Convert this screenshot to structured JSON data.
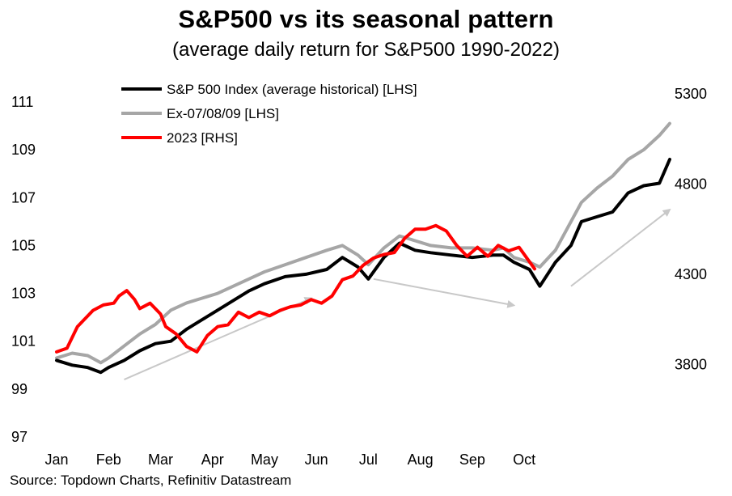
{
  "chart_data": {
    "type": "line",
    "title": "S&P500 vs its seasonal pattern",
    "subtitle": "(average daily return for S&P500 1990-2022)",
    "source": "Source: Topdown Charts, Refinitiv Datastream",
    "x_ticks": [
      "Jan",
      "Feb",
      "Mar",
      "Apr",
      "May",
      "Jun",
      "Jul",
      "Aug",
      "Sep",
      "Oct"
    ],
    "x_range": [
      0,
      11.8
    ],
    "y_left": {
      "ylim": [
        97,
        111
      ],
      "ticks": [
        "111",
        "109",
        "107",
        "105",
        "103",
        "101",
        "99",
        "97"
      ]
    },
    "y_right": {
      "ylim": [
        3300,
        5300
      ],
      "ticks": [
        "5300",
        "4800",
        "4300",
        "3800"
      ]
    },
    "legend": {
      "position": "top-left",
      "entries": [
        {
          "name": "S&P 500 Index (average historical) [LHS]",
          "color": "#000000"
        },
        {
          "name": "Ex-07/08/09 [LHS]",
          "color": "#a6a6a6"
        },
        {
          "name": "2023 [RHS]",
          "color": "#ff0000"
        }
      ]
    },
    "series": [
      {
        "name": "S&P 500 Index (average historical) [LHS]",
        "axis": "left",
        "color": "#000000",
        "points": [
          [
            0.0,
            100.2
          ],
          [
            0.3,
            100.0
          ],
          [
            0.6,
            99.9
          ],
          [
            0.85,
            99.7
          ],
          [
            1.0,
            99.9
          ],
          [
            1.3,
            100.2
          ],
          [
            1.6,
            100.6
          ],
          [
            1.9,
            100.9
          ],
          [
            2.2,
            101.0
          ],
          [
            2.5,
            101.5
          ],
          [
            2.8,
            101.9
          ],
          [
            3.1,
            102.3
          ],
          [
            3.4,
            102.7
          ],
          [
            3.7,
            103.1
          ],
          [
            4.0,
            103.4
          ],
          [
            4.4,
            103.7
          ],
          [
            4.8,
            103.8
          ],
          [
            5.2,
            104.0
          ],
          [
            5.5,
            104.5
          ],
          [
            5.8,
            104.1
          ],
          [
            6.0,
            103.6
          ],
          [
            6.3,
            104.5
          ],
          [
            6.6,
            105.1
          ],
          [
            6.9,
            104.8
          ],
          [
            7.2,
            104.7
          ],
          [
            7.6,
            104.6
          ],
          [
            8.0,
            104.5
          ],
          [
            8.4,
            104.6
          ],
          [
            8.6,
            104.6
          ],
          [
            8.8,
            104.3
          ],
          [
            9.1,
            104.0
          ],
          [
            9.3,
            103.3
          ],
          [
            9.6,
            104.3
          ],
          [
            9.9,
            105.0
          ],
          [
            10.1,
            106.0
          ],
          [
            10.4,
            106.2
          ],
          [
            10.7,
            106.4
          ],
          [
            11.0,
            107.2
          ],
          [
            11.3,
            107.5
          ],
          [
            11.6,
            107.6
          ],
          [
            11.8,
            108.6
          ]
        ]
      },
      {
        "name": "Ex-07/08/09 [LHS]",
        "axis": "left",
        "color": "#a6a6a6",
        "points": [
          [
            0.0,
            100.3
          ],
          [
            0.3,
            100.5
          ],
          [
            0.6,
            100.4
          ],
          [
            0.85,
            100.1
          ],
          [
            1.0,
            100.3
          ],
          [
            1.3,
            100.8
          ],
          [
            1.6,
            101.3
          ],
          [
            1.9,
            101.7
          ],
          [
            2.2,
            102.3
          ],
          [
            2.5,
            102.6
          ],
          [
            2.8,
            102.8
          ],
          [
            3.1,
            103.0
          ],
          [
            3.4,
            103.3
          ],
          [
            3.7,
            103.6
          ],
          [
            4.0,
            103.9
          ],
          [
            4.4,
            104.2
          ],
          [
            4.8,
            104.5
          ],
          [
            5.2,
            104.8
          ],
          [
            5.5,
            105.0
          ],
          [
            5.8,
            104.6
          ],
          [
            6.0,
            104.2
          ],
          [
            6.3,
            104.9
          ],
          [
            6.6,
            105.4
          ],
          [
            6.9,
            105.2
          ],
          [
            7.2,
            105.0
          ],
          [
            7.6,
            104.9
          ],
          [
            8.0,
            104.9
          ],
          [
            8.4,
            104.8
          ],
          [
            8.6,
            104.9
          ],
          [
            8.8,
            104.5
          ],
          [
            9.1,
            104.3
          ],
          [
            9.3,
            104.1
          ],
          [
            9.6,
            104.8
          ],
          [
            9.9,
            106.0
          ],
          [
            10.1,
            106.8
          ],
          [
            10.4,
            107.4
          ],
          [
            10.7,
            107.9
          ],
          [
            11.0,
            108.6
          ],
          [
            11.3,
            109.0
          ],
          [
            11.6,
            109.6
          ],
          [
            11.8,
            110.1
          ]
        ]
      },
      {
        "name": "2023 [RHS]",
        "axis": "right",
        "color": "#ff0000",
        "points": [
          [
            0.0,
            3870
          ],
          [
            0.2,
            3890
          ],
          [
            0.4,
            4010
          ],
          [
            0.7,
            4100
          ],
          [
            0.9,
            4130
          ],
          [
            1.1,
            4140
          ],
          [
            1.2,
            4180
          ],
          [
            1.35,
            4210
          ],
          [
            1.5,
            4160
          ],
          [
            1.6,
            4110
          ],
          [
            1.8,
            4140
          ],
          [
            2.0,
            4080
          ],
          [
            2.1,
            4010
          ],
          [
            2.3,
            3970
          ],
          [
            2.5,
            3900
          ],
          [
            2.7,
            3870
          ],
          [
            2.9,
            3960
          ],
          [
            3.1,
            4010
          ],
          [
            3.3,
            4020
          ],
          [
            3.5,
            4090
          ],
          [
            3.7,
            4060
          ],
          [
            3.9,
            4090
          ],
          [
            4.1,
            4070
          ],
          [
            4.3,
            4100
          ],
          [
            4.5,
            4120
          ],
          [
            4.7,
            4130
          ],
          [
            4.9,
            4160
          ],
          [
            5.1,
            4140
          ],
          [
            5.3,
            4180
          ],
          [
            5.5,
            4270
          ],
          [
            5.7,
            4290
          ],
          [
            5.9,
            4350
          ],
          [
            6.1,
            4390
          ],
          [
            6.3,
            4410
          ],
          [
            6.5,
            4420
          ],
          [
            6.7,
            4500
          ],
          [
            6.9,
            4550
          ],
          [
            7.1,
            4550
          ],
          [
            7.3,
            4570
          ],
          [
            7.5,
            4540
          ],
          [
            7.7,
            4460
          ],
          [
            7.9,
            4400
          ],
          [
            8.1,
            4450
          ],
          [
            8.3,
            4400
          ],
          [
            8.5,
            4460
          ],
          [
            8.7,
            4430
          ],
          [
            8.9,
            4450
          ],
          [
            9.1,
            4370
          ],
          [
            9.2,
            4330
          ]
        ]
      }
    ],
    "annotations": [
      {
        "type": "arrow",
        "color": "#c8c8c8",
        "from": [
          1.3,
          99.4
        ],
        "to": [
          4.9,
          102.8
        ]
      },
      {
        "type": "arrow",
        "color": "#c8c8c8",
        "from": [
          6.1,
          103.6
        ],
        "to": [
          8.8,
          102.5
        ]
      },
      {
        "type": "arrow",
        "color": "#c8c8c8",
        "from": [
          9.9,
          103.3
        ],
        "to": [
          11.8,
          106.5
        ]
      }
    ]
  }
}
